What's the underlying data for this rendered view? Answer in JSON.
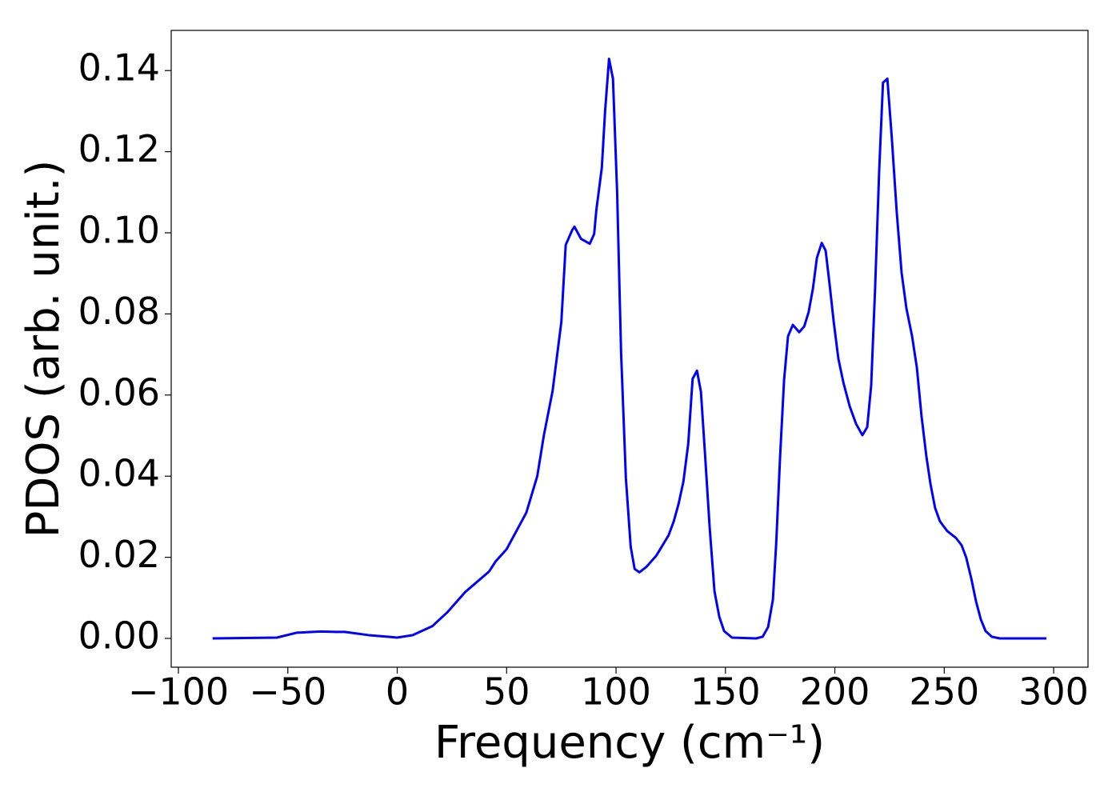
{
  "chart_data": {
    "type": "line",
    "x_label": "Frequency (cm⁻¹)",
    "y_label": "PDOS (arb. unit.)",
    "xlim": [
      -103.3,
      315.7
    ],
    "ylim": [
      -0.0071,
      0.1499
    ],
    "xticks": [
      {
        "value": -100,
        "label": "−100"
      },
      {
        "value": -50,
        "label": "−50"
      },
      0,
      50,
      100,
      150,
      200,
      250,
      300
    ],
    "yticks": [
      {
        "value": 0,
        "label": "0.00"
      },
      0.02,
      0.04,
      0.06,
      0.08,
      {
        "value": 0.1,
        "label": "0.10"
      },
      0.12,
      0.14
    ],
    "grid": false,
    "series": [
      {
        "color": "#0000ff",
        "x": [
          -84.4,
          -55,
          -46,
          -35,
          -28,
          -24,
          -13,
          -4,
          0,
          7,
          16,
          23,
          31,
          42,
          45,
          50,
          54,
          59,
          64,
          67,
          71,
          75,
          77,
          80,
          81,
          84,
          88,
          90,
          91,
          93.5,
          95,
          96.8,
          98.6,
          100.5,
          102.3,
          104.5,
          106.7,
          108.5,
          110.7,
          114,
          118.4,
          124,
          126.4,
          128.6,
          130.8,
          133,
          135,
          137,
          138.8,
          140.6,
          142.8,
          145,
          147.2,
          149.4,
          153,
          164,
          167,
          169.5,
          171.7,
          173.2,
          175,
          176.8,
          178.6,
          180.8,
          183.7,
          186,
          188,
          190,
          191.8,
          194,
          195.8,
          197.6,
          199.5,
          201.6,
          203.9,
          206.8,
          209.7,
          212.6,
          214.8,
          216.6,
          218.4,
          220.3,
          222,
          224,
          226,
          228.3,
          230.5,
          232.7,
          235.3,
          237.5,
          239.6,
          241.8,
          243.7,
          245.8,
          248,
          251.3,
          255.3,
          257.9,
          260,
          262.3,
          264.5,
          266.7,
          268.9,
          271.8,
          275.4,
          296.7
        ],
        "values": [
          0,
          0.0002,
          0.0014,
          0.0017,
          0.0016,
          0.0016,
          0.0008,
          0.0004,
          0.0002,
          0.0008,
          0.003,
          0.0065,
          0.0114,
          0.0165,
          0.019,
          0.022,
          0.026,
          0.031,
          0.04,
          0.05,
          0.061,
          0.078,
          0.097,
          0.1007,
          0.1015,
          0.0985,
          0.0973,
          0.0997,
          0.1056,
          0.116,
          0.13,
          0.1429,
          0.138,
          0.11,
          0.0706,
          0.0395,
          0.0226,
          0.0171,
          0.0163,
          0.0177,
          0.0204,
          0.0254,
          0.0289,
          0.0332,
          0.0387,
          0.048,
          0.064,
          0.066,
          0.0608,
          0.046,
          0.0273,
          0.0116,
          0.0053,
          0.0018,
          0.0002,
          0,
          0.0004,
          0.0028,
          0.0096,
          0.0234,
          0.045,
          0.0637,
          0.0745,
          0.0773,
          0.0755,
          0.0769,
          0.0804,
          0.0863,
          0.0938,
          0.0975,
          0.0956,
          0.0873,
          0.078,
          0.069,
          0.0631,
          0.0572,
          0.0529,
          0.0501,
          0.0521,
          0.0623,
          0.0863,
          0.1158,
          0.137,
          0.138,
          0.1237,
          0.105,
          0.0902,
          0.0814,
          0.0745,
          0.0667,
          0.0549,
          0.045,
          0.0381,
          0.0322,
          0.0289,
          0.0265,
          0.0248,
          0.023,
          0.02,
          0.0149,
          0.0092,
          0.0047,
          0.0018,
          0.0004,
          0,
          0
        ]
      }
    ]
  }
}
